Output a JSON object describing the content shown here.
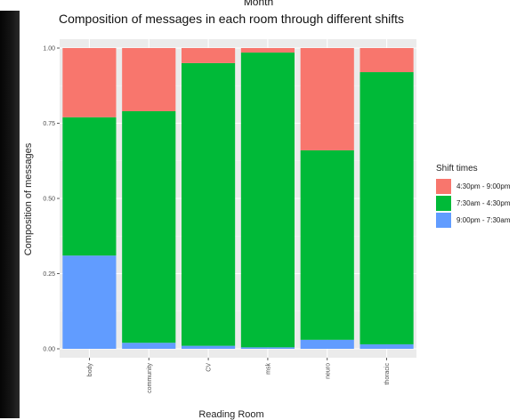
{
  "header": {
    "month_label": "Month"
  },
  "chart_data": {
    "type": "bar",
    "stacked": true,
    "title": "Composition of messages in each room through different shifts",
    "xlabel": "Reading Room",
    "ylabel": "Composition of messages",
    "ylim": [
      0,
      1
    ],
    "yticks": [
      0,
      0.25,
      0.5,
      0.75,
      1
    ],
    "ytick_labels": [
      "0.00",
      "0.25",
      "0.50",
      "0.75",
      "1.00"
    ],
    "grid": true,
    "legend_position": "right",
    "legend_title": "Shift times",
    "categories": [
      "body",
      "community",
      "CV",
      "msk",
      "neuro",
      "thoracic"
    ],
    "series": [
      {
        "name": "9:00pm - 7:30am",
        "color": "#619CFF",
        "values": [
          0.31,
          0.02,
          0.01,
          0.005,
          0.03,
          0.015
        ]
      },
      {
        "name": "7:30am - 4:30pm",
        "color": "#00BA38",
        "values": [
          0.46,
          0.77,
          0.94,
          0.98,
          0.63,
          0.905
        ]
      },
      {
        "name": "4:30pm - 9:00pm",
        "color": "#F8766D",
        "values": [
          0.23,
          0.21,
          0.05,
          0.015,
          0.34,
          0.08
        ]
      }
    ],
    "legend_order": [
      "4:30pm - 9:00pm",
      "7:30am - 4:30pm",
      "9:00pm - 7:30am"
    ]
  }
}
